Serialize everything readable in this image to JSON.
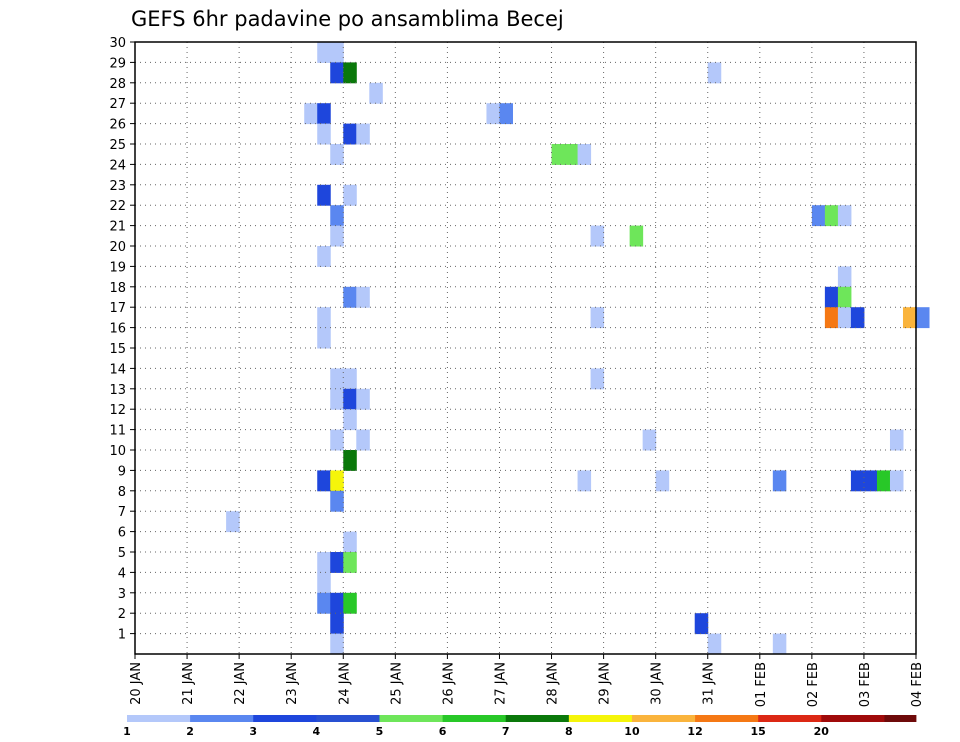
{
  "chart_data": {
    "type": "heatmap",
    "title": "GEFS 6hr padavine po ansamblima Becej",
    "x_tick_labels": [
      "20 JAN",
      "21 JAN",
      "22 JAN",
      "23 JAN",
      "24 JAN",
      "25 JAN",
      "26 JAN",
      "27 JAN",
      "28 JAN",
      "29 JAN",
      "30 JAN",
      "31 JAN",
      "01 FEB",
      "02 FEB",
      "03 FEB",
      "04 FEB"
    ],
    "x_range_days": [
      0,
      15
    ],
    "step_days": 0.25,
    "y_tick_labels": [
      "1",
      "2",
      "3",
      "4",
      "5",
      "6",
      "7",
      "8",
      "9",
      "10",
      "11",
      "12",
      "13",
      "14",
      "15",
      "16",
      "17",
      "18",
      "19",
      "20",
      "21",
      "22",
      "23",
      "24",
      "25",
      "26",
      "27",
      "28",
      "29",
      "30"
    ],
    "y_range": [
      0,
      30
    ],
    "grid": true,
    "colorbar": {
      "labels": [
        "1",
        "2",
        "3",
        "4",
        "5",
        "6",
        "7",
        "8",
        "10",
        "12",
        "15",
        "20"
      ],
      "colors": [
        "#b4c8fa",
        "#5a87f0",
        "#1e46dc",
        "#2850d2",
        "#6ee65a",
        "#28c828",
        "#0a780a",
        "#f5f50a",
        "#fab43c",
        "#f57814",
        "#dc2814",
        "#a00a0a",
        "#6e0a0a"
      ]
    },
    "cells": [
      {
        "m": 30,
        "t": 3.5,
        "c": 1
      },
      {
        "m": 30,
        "t": 3.75,
        "c": 1
      },
      {
        "m": 29,
        "t": 3.75,
        "c": 3
      },
      {
        "m": 29,
        "t": 4.0,
        "c": 7
      },
      {
        "m": 29,
        "t": 11.0,
        "c": 1
      },
      {
        "m": 28,
        "t": 4.5,
        "c": 1
      },
      {
        "m": 27,
        "t": 3.25,
        "c": 1
      },
      {
        "m": 27,
        "t": 3.5,
        "c": 3
      },
      {
        "m": 27,
        "t": 6.75,
        "c": 1
      },
      {
        "m": 27,
        "t": 7.0,
        "c": 2
      },
      {
        "m": 26,
        "t": 3.5,
        "c": 1
      },
      {
        "m": 26,
        "t": 4.0,
        "c": 3
      },
      {
        "m": 26,
        "t": 4.25,
        "c": 1
      },
      {
        "m": 25,
        "t": 3.75,
        "c": 1
      },
      {
        "m": 25,
        "t": 8.0,
        "c": 5
      },
      {
        "m": 25,
        "t": 8.25,
        "c": 5
      },
      {
        "m": 25,
        "t": 8.5,
        "c": 1
      },
      {
        "m": 23,
        "t": 3.5,
        "c": 3
      },
      {
        "m": 23,
        "t": 4.0,
        "c": 1
      },
      {
        "m": 22,
        "t": 3.75,
        "c": 2
      },
      {
        "m": 22,
        "t": 13.0,
        "c": 2
      },
      {
        "m": 22,
        "t": 13.25,
        "c": 5
      },
      {
        "m": 22,
        "t": 13.5,
        "c": 1
      },
      {
        "m": 21,
        "t": 3.75,
        "c": 1
      },
      {
        "m": 21,
        "t": 8.75,
        "c": 1
      },
      {
        "m": 21,
        "t": 9.5,
        "c": 5
      },
      {
        "m": 20,
        "t": 3.5,
        "c": 1
      },
      {
        "m": 19,
        "t": 13.5,
        "c": 1
      },
      {
        "m": 18,
        "t": 4.0,
        "c": 2
      },
      {
        "m": 18,
        "t": 4.25,
        "c": 1
      },
      {
        "m": 18,
        "t": 13.25,
        "c": 3
      },
      {
        "m": 18,
        "t": 13.5,
        "c": 5
      },
      {
        "m": 17,
        "t": 3.5,
        "c": 1
      },
      {
        "m": 17,
        "t": 8.75,
        "c": 1
      },
      {
        "m": 17,
        "t": 13.25,
        "c": 10
      },
      {
        "m": 17,
        "t": 13.5,
        "c": 1
      },
      {
        "m": 17,
        "t": 13.75,
        "c": 3
      },
      {
        "m": 17,
        "t": 14.75,
        "c": 9
      },
      {
        "m": 17,
        "t": 15.0,
        "c": 2
      },
      {
        "m": 16,
        "t": 3.5,
        "c": 1
      },
      {
        "m": 14,
        "t": 3.75,
        "c": 1
      },
      {
        "m": 14,
        "t": 4.0,
        "c": 1
      },
      {
        "m": 14,
        "t": 8.75,
        "c": 1
      },
      {
        "m": 13,
        "t": 3.75,
        "c": 1
      },
      {
        "m": 13,
        "t": 4.0,
        "c": 3
      },
      {
        "m": 13,
        "t": 4.25,
        "c": 1
      },
      {
        "m": 12,
        "t": 4.0,
        "c": 1
      },
      {
        "m": 11,
        "t": 3.75,
        "c": 1
      },
      {
        "m": 11,
        "t": 4.25,
        "c": 1
      },
      {
        "m": 11,
        "t": 9.75,
        "c": 1
      },
      {
        "m": 11,
        "t": 14.5,
        "c": 1
      },
      {
        "m": 10,
        "t": 4.0,
        "c": 7
      },
      {
        "m": 9,
        "t": 3.5,
        "c": 3
      },
      {
        "m": 9,
        "t": 3.75,
        "c": 8
      },
      {
        "m": 9,
        "t": 8.5,
        "c": 1
      },
      {
        "m": 9,
        "t": 10.0,
        "c": 1
      },
      {
        "m": 9,
        "t": 12.25,
        "c": 2
      },
      {
        "m": 9,
        "t": 13.75,
        "c": 3
      },
      {
        "m": 9,
        "t": 14.0,
        "c": 3
      },
      {
        "m": 9,
        "t": 14.25,
        "c": 6
      },
      {
        "m": 9,
        "t": 14.5,
        "c": 1
      },
      {
        "m": 8,
        "t": 3.75,
        "c": 2
      },
      {
        "m": 7,
        "t": 1.75,
        "c": 1
      },
      {
        "m": 6,
        "t": 4.0,
        "c": 1
      },
      {
        "m": 5,
        "t": 3.5,
        "c": 1
      },
      {
        "m": 5,
        "t": 3.75,
        "c": 3
      },
      {
        "m": 5,
        "t": 4.0,
        "c": 5
      },
      {
        "m": 4,
        "t": 3.5,
        "c": 1
      },
      {
        "m": 3,
        "t": 3.5,
        "c": 2
      },
      {
        "m": 3,
        "t": 3.75,
        "c": 3
      },
      {
        "m": 3,
        "t": 4.0,
        "c": 6
      },
      {
        "m": 2,
        "t": 3.75,
        "c": 3
      },
      {
        "m": 2,
        "t": 10.75,
        "c": 3
      },
      {
        "m": 1,
        "t": 3.75,
        "c": 1
      },
      {
        "m": 1,
        "t": 11.0,
        "c": 1
      },
      {
        "m": 1,
        "t": 12.25,
        "c": 1
      }
    ]
  }
}
